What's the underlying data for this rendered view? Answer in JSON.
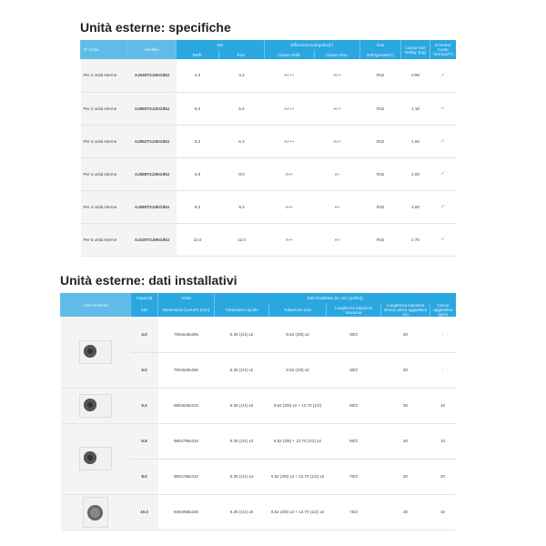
{
  "specs": {
    "title": "Unità esterne: specifiche",
    "headers": {
      "unit": "N° Unità",
      "model": "Modello",
      "kw": "kW",
      "kw_cool": "Raffr.",
      "kw_heat": "Risc.",
      "eff": "Efficienza Energetica(*)",
      "eff_cool": "Classe Raffr.",
      "eff_heat": "Classe Risc.",
      "gas": "Gas",
      "gas_sub": "Refrigerante(*)",
      "charge": "Carica Gas Refrig. (Kg)",
      "incent": "Incentivi/ Conto Termico(**)"
    },
    "rows": [
      {
        "unit": "Per 2 unità interne",
        "model": "AJ040TXJ2KG/EU",
        "cool": "4.0",
        "heat": "4.2",
        "ec": "A+++",
        "eh": "A++",
        "gas": "R32",
        "charge": "0.98",
        "inc": "✓"
      },
      {
        "unit": "Per 2 unità interne",
        "model": "AJ050TXJ2KG/EU",
        "cool": "5.0",
        "heat": "5.6",
        "ec": "A+++",
        "eh": "A++",
        "gas": "R32",
        "charge": "1.18",
        "inc": "✓"
      },
      {
        "unit": "Per 3 unità interne",
        "model": "AJ052TXJ3KG/EU",
        "cool": "5.2",
        "heat": "6.3",
        "ec": "A+++",
        "eh": "A++",
        "gas": "R32",
        "charge": "1.55",
        "inc": "✓"
      },
      {
        "unit": "Per 3 unità interne",
        "model": "AJ068TXJ3KG/EU",
        "cool": "6.8",
        "heat": "8.0",
        "ec": "A++",
        "eh": "A+",
        "gas": "R32",
        "charge": "2.00",
        "inc": "✓"
      },
      {
        "unit": "Per 4 unità interne",
        "model": "AJ080TXJ4KG/EU",
        "cool": "8.0",
        "heat": "9.3",
        "ec": "A++",
        "eh": "A+",
        "gas": "R32",
        "charge": "2.00",
        "inc": "✓"
      },
      {
        "unit": "Per 5 unità interne",
        "model": "AJ100TXJ5KG/EU",
        "cool": "10.0",
        "heat": "12.0",
        "ec": "A++",
        "eh": "A+",
        "gas": "R32",
        "charge": "2.70",
        "inc": "✓"
      }
    ]
  },
  "install": {
    "title": "Unità esterne: dati installativi",
    "headers": {
      "unit": "Unità Esterne",
      "cap": "Capacità",
      "cap_sub": "kW",
      "dim": "Unità",
      "dim_sub": "Dimensioni (LxAxP) (mm)",
      "data": "Dati installativi (ø, mm (pollici))",
      "liq": "Tubazione Liquido",
      "gasp": "Tubazione Gas",
      "len": "Lunghezza tubazioni massima",
      "nocharge": "Lunghezza massima senza carica aggiuntiva (m)",
      "extra": "Carica aggiuntiva (g/m)"
    },
    "rows": [
      {
        "cap": "4.0",
        "dim": "790x548x285",
        "liq": "6.35 (1/4) x2",
        "gas": "9.52 (3/8) x2",
        "len": "30/3",
        "nc": "30",
        "extra": "-"
      },
      {
        "cap": "5.0",
        "dim": "790x548x285",
        "liq": "6.35 (1/4) x2",
        "gas": "9.52 (3/8) x2",
        "len": "30/3",
        "nc": "30",
        "extra": "-"
      },
      {
        "cap": "5.2",
        "dim": "880x638x310",
        "liq": "6.35 (1/4) x3",
        "gas": "9.52 (3/8) x2 + 12.70 (1/2)",
        "len": "50/3",
        "nc": "30",
        "extra": "10"
      },
      {
        "cap": "6.8",
        "dim": "880x798x310",
        "liq": "6.35 (1/4) x3",
        "gas": "9.52 (3/8) + 12.70 (1/2) x2",
        "len": "50/3",
        "nc": "30",
        "extra": "10"
      },
      {
        "cap": "8.0",
        "dim": "880x798x310",
        "liq": "6.35 (1/4) x4",
        "gas": "9.52 (3/8) x2 + 12.70 (1/2) x2",
        "len": "70/3",
        "nc": "30",
        "extra": "20"
      },
      {
        "cap": "10.0",
        "dim": "940x998x330",
        "liq": "6.35 (1/4) x5",
        "gas": "9.52 (3/8) x2 + 12.70 (1/2) x3",
        "len": "75/3",
        "nc": "30",
        "extra": "10"
      }
    ],
    "images": [
      "outdoor-unit-small",
      "outdoor-unit-medium",
      "outdoor-unit-large",
      "outdoor-unit-xl"
    ]
  },
  "colors": {
    "header": "#2aa7e0",
    "header_first": "#5fbce8"
  }
}
